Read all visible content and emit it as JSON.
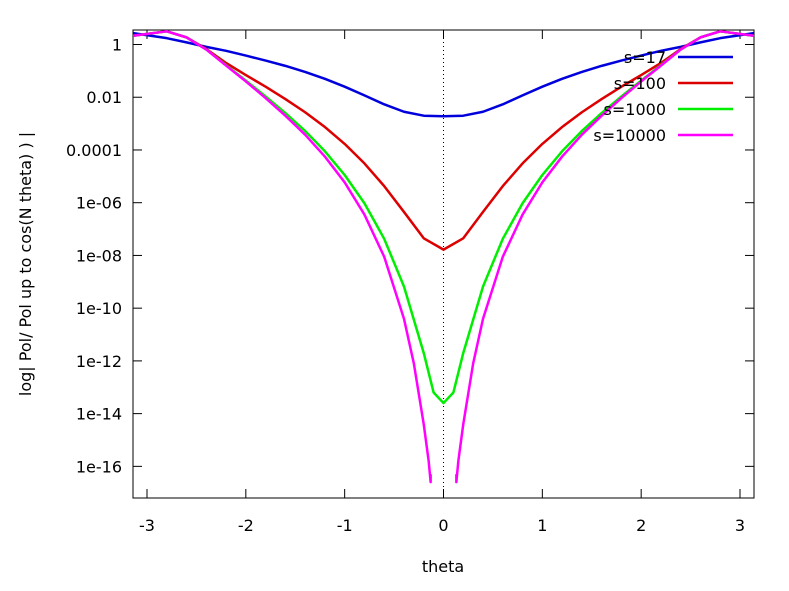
{
  "chart_data": {
    "type": "line",
    "xlabel": "theta",
    "ylabel": "log| Pol/ Pol up to cos(N theta) ) |",
    "yscale": "log",
    "xlim": [
      -3.1416,
      3.1416
    ],
    "ylim_exponent": [
      -17.2,
      0.55
    ],
    "x_ticks": [
      {
        "value": -3,
        "label": "-3"
      },
      {
        "value": -2,
        "label": "-2"
      },
      {
        "value": -1,
        "label": "-1"
      },
      {
        "value": 0,
        "label": "0"
      },
      {
        "value": 1,
        "label": "1"
      },
      {
        "value": 2,
        "label": "2"
      },
      {
        "value": 3,
        "label": "3"
      }
    ],
    "y_ticks": [
      {
        "exponent": 0,
        "label": "1"
      },
      {
        "exponent": -2,
        "label": "0.01"
      },
      {
        "exponent": -4,
        "label": "0.0001"
      },
      {
        "exponent": -6,
        "label": "1e-06"
      },
      {
        "exponent": -8,
        "label": "1e-08"
      },
      {
        "exponent": -10,
        "label": "1e-10"
      },
      {
        "exponent": -12,
        "label": "1e-12"
      },
      {
        "exponent": -14,
        "label": "1e-14"
      },
      {
        "exponent": -16,
        "label": "1e-16"
      }
    ],
    "reference_line": {
      "x": 0,
      "style": "dotted"
    },
    "legend_position": "top-right",
    "series": [
      {
        "name": "s=17",
        "color": "#0000dd",
        "x": [
          -3.14,
          -2.8,
          -2.6,
          -2.4,
          -2.2,
          -2.0,
          -1.8,
          -1.6,
          -1.4,
          -1.2,
          -1.0,
          -0.8,
          -0.6,
          -0.4,
          -0.2,
          0,
          0.2,
          0.4,
          0.6,
          0.8,
          1.0,
          1.2,
          1.4,
          1.6,
          1.8,
          2.0,
          2.2,
          2.4,
          2.6,
          2.8,
          3.14
        ],
        "log10_y": [
          0.43,
          0.24,
          0.08,
          -0.09,
          -0.24,
          -0.42,
          -0.61,
          -0.81,
          -1.04,
          -1.3,
          -1.6,
          -1.93,
          -2.27,
          -2.55,
          -2.7,
          -2.72,
          -2.7,
          -2.55,
          -2.27,
          -1.93,
          -1.6,
          -1.3,
          -1.04,
          -0.81,
          -0.61,
          -0.42,
          -0.24,
          -0.09,
          0.08,
          0.24,
          0.43
        ]
      },
      {
        "name": "s=100",
        "color": "#dd0000",
        "x": [
          -3.14,
          -2.8,
          -2.6,
          -2.4,
          -2.2,
          -2.0,
          -1.8,
          -1.6,
          -1.4,
          -1.2,
          -1.0,
          -0.8,
          -0.6,
          -0.4,
          -0.2,
          0,
          0.2,
          0.4,
          0.6,
          0.8,
          1.0,
          1.2,
          1.4,
          1.6,
          1.8,
          2.0,
          2.2,
          2.4,
          2.6,
          2.8,
          3.14
        ],
        "log10_y": [
          0.33,
          0.5,
          0.27,
          -0.17,
          -0.7,
          -1.16,
          -1.6,
          -2.07,
          -2.57,
          -3.13,
          -3.77,
          -4.51,
          -5.37,
          -6.35,
          -7.35,
          -7.78,
          -7.35,
          -6.35,
          -5.37,
          -4.51,
          -3.77,
          -3.13,
          -2.57,
          -2.07,
          -1.6,
          -1.16,
          -0.7,
          -0.17,
          0.27,
          0.5,
          0.33
        ]
      },
      {
        "name": "s=1000",
        "color": "#00ee00",
        "x": [
          -3.14,
          -2.8,
          -2.6,
          -2.4,
          -2.2,
          -2.0,
          -1.8,
          -1.6,
          -1.4,
          -1.2,
          -1.0,
          -0.8,
          -0.6,
          -0.4,
          -0.2,
          -0.1,
          0,
          0.1,
          0.2,
          0.4,
          0.6,
          0.8,
          1.0,
          1.2,
          1.4,
          1.6,
          1.8,
          2.0,
          2.2,
          2.4,
          2.6,
          2.8,
          3.14
        ],
        "log10_y": [
          0.33,
          0.5,
          0.27,
          -0.19,
          -0.78,
          -1.37,
          -1.97,
          -2.6,
          -3.28,
          -4.05,
          -4.95,
          -6.02,
          -7.37,
          -9.18,
          -11.7,
          -13.2,
          -13.6,
          -13.2,
          -11.7,
          -9.18,
          -7.37,
          -6.02,
          -4.95,
          -4.05,
          -3.28,
          -2.6,
          -1.97,
          -1.37,
          -0.78,
          -0.19,
          0.27,
          0.5,
          0.33
        ]
      },
      {
        "name": "s=10000",
        "color": "#ff00ff",
        "x": [
          -3.14,
          -2.8,
          -2.6,
          -2.4,
          -2.2,
          -2.0,
          -1.8,
          -1.6,
          -1.4,
          -1.2,
          -1.0,
          -0.8,
          -0.6,
          -0.4,
          -0.3,
          -0.2,
          -0.15,
          -0.13,
          -0.13,
          null,
          0.13,
          0.13,
          0.15,
          0.2,
          0.3,
          0.4,
          0.6,
          0.8,
          1.0,
          1.2,
          1.4,
          1.6,
          1.8,
          2.0,
          2.2,
          2.4,
          2.6,
          2.8,
          3.14
        ],
        "log10_y": [
          0.33,
          0.5,
          0.27,
          -0.19,
          -0.8,
          -1.4,
          -2.03,
          -2.7,
          -3.42,
          -4.25,
          -5.23,
          -6.45,
          -8.05,
          -10.4,
          -12.1,
          -14.4,
          -15.8,
          -16.6,
          -16.3,
          null,
          -16.3,
          -16.6,
          -15.8,
          -14.4,
          -12.1,
          -10.4,
          -8.05,
          -6.45,
          -5.23,
          -4.25,
          -3.42,
          -2.7,
          -2.03,
          -1.4,
          -0.8,
          -0.19,
          0.27,
          0.5,
          0.33
        ]
      }
    ]
  }
}
